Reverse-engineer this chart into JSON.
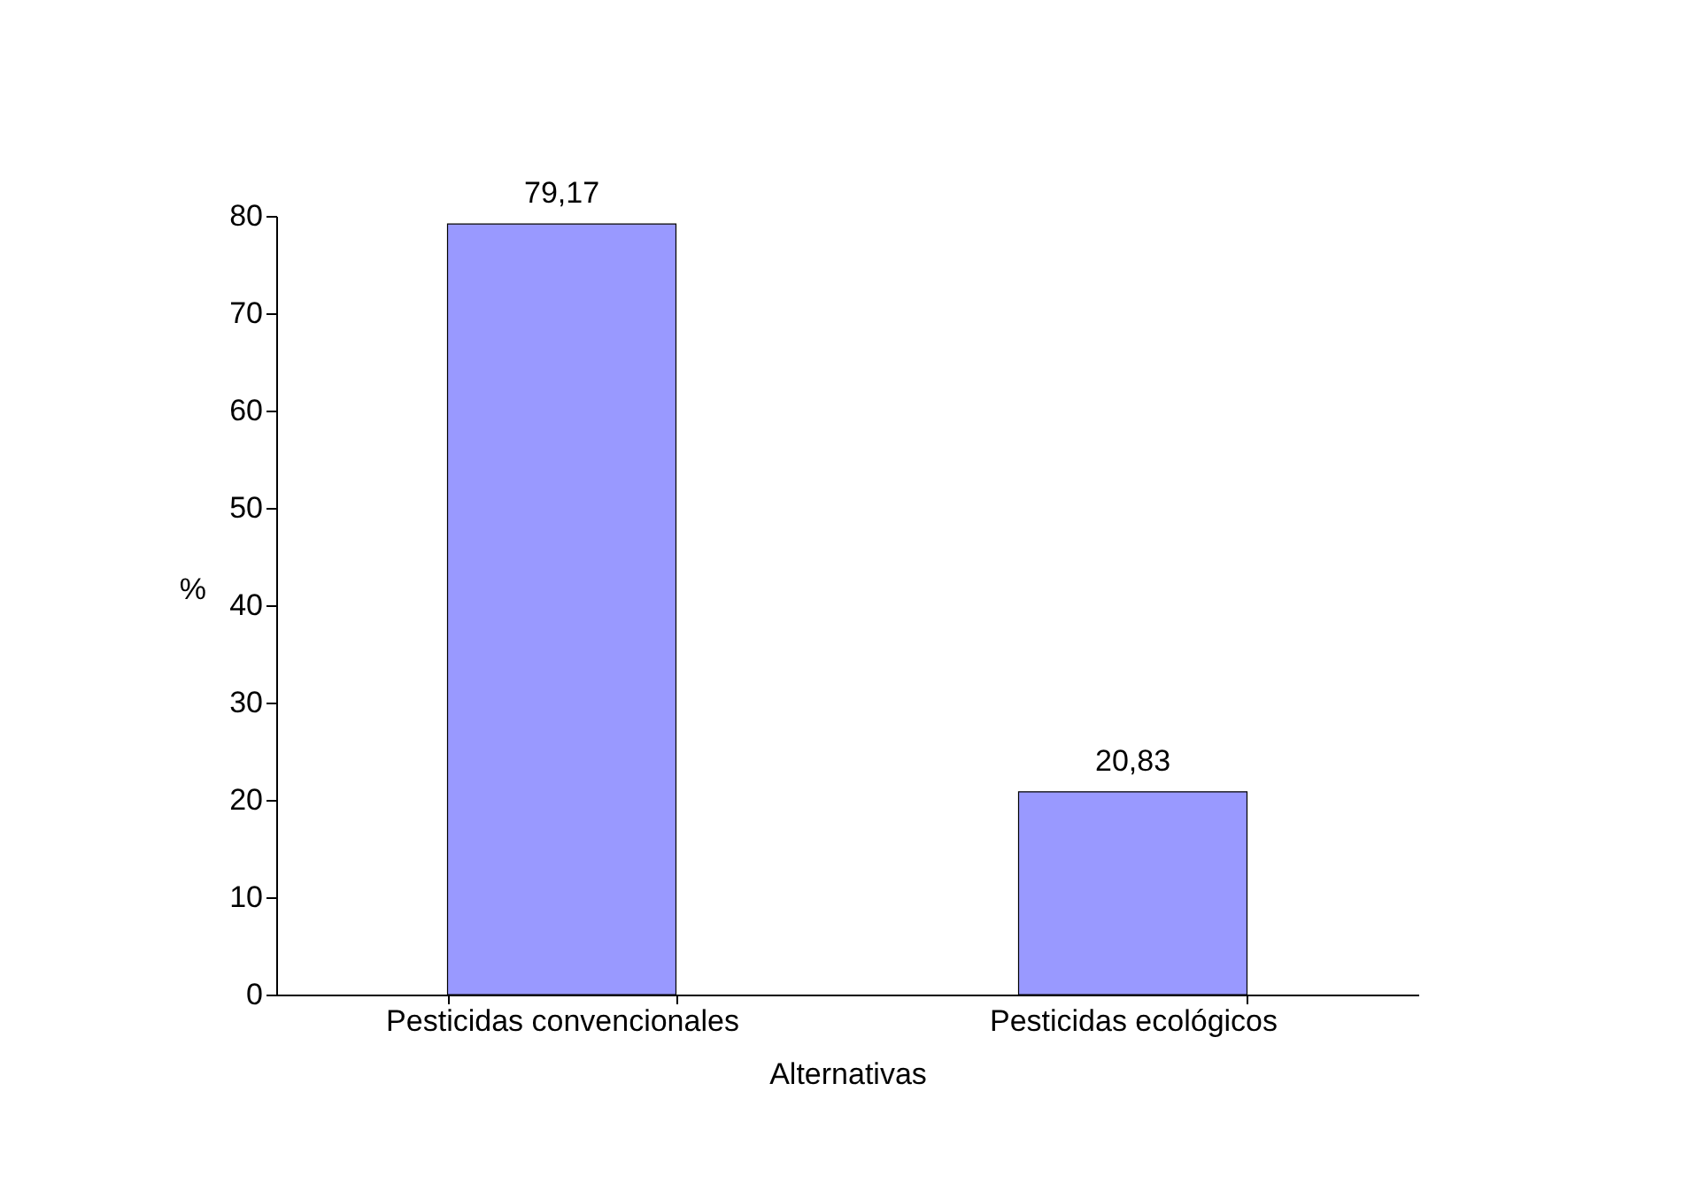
{
  "chart_data": {
    "type": "bar",
    "xlabel": "Alternativas",
    "ylabel": "%",
    "categories": [
      "Pesticidas convencionales",
      "Pesticidas ecológicos"
    ],
    "values": [
      79.17,
      20.83
    ],
    "value_labels": [
      "79,17",
      "20,83"
    ],
    "color": "#9999ff",
    "ylim": [
      0,
      80
    ],
    "yticks": [
      0,
      10,
      20,
      30,
      40,
      50,
      60,
      70,
      80
    ],
    "grid": false
  }
}
